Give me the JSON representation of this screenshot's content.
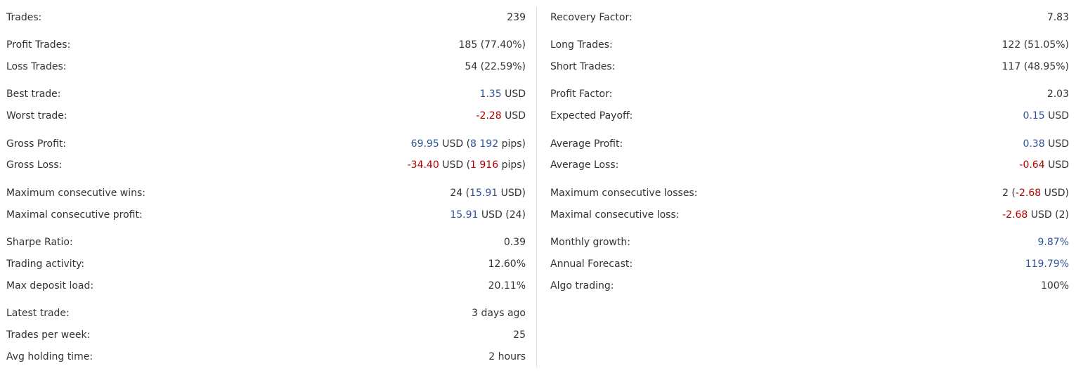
{
  "colors": {
    "text": "#333333",
    "positive": "#2f5597",
    "negative": "#b30000",
    "divider": "#e0e0e0"
  },
  "left": [
    {
      "label": "Trades:",
      "value": [
        {
          "t": "239",
          "c": "plain"
        }
      ]
    },
    {
      "label": "Profit Trades:",
      "value": [
        {
          "t": "185 (77.40%)",
          "c": "plain"
        }
      ]
    },
    {
      "label": "Loss Trades:",
      "value": [
        {
          "t": "54 (22.59%)",
          "c": "plain"
        }
      ]
    },
    {
      "label": "Best trade:",
      "value": [
        {
          "t": "1.35",
          "c": "pos"
        },
        {
          "t": " USD",
          "c": "plain"
        }
      ]
    },
    {
      "label": "Worst trade:",
      "value": [
        {
          "t": "-2.28",
          "c": "neg"
        },
        {
          "t": " USD",
          "c": "plain"
        }
      ]
    },
    {
      "label": "Gross Profit:",
      "value": [
        {
          "t": "69.95",
          "c": "pos"
        },
        {
          "t": " USD (",
          "c": "plain"
        },
        {
          "t": "8 192",
          "c": "pos"
        },
        {
          "t": " pips)",
          "c": "plain"
        }
      ]
    },
    {
      "label": "Gross Loss:",
      "value": [
        {
          "t": "-34.40",
          "c": "neg"
        },
        {
          "t": " USD (",
          "c": "plain"
        },
        {
          "t": "1 916",
          "c": "neg"
        },
        {
          "t": " pips)",
          "c": "plain"
        }
      ]
    },
    {
      "label": "Maximum consecutive wins:",
      "value": [
        {
          "t": "24 (",
          "c": "plain"
        },
        {
          "t": "15.91",
          "c": "pos"
        },
        {
          "t": " USD)",
          "c": "plain"
        }
      ]
    },
    {
      "label": "Maximal consecutive profit:",
      "value": [
        {
          "t": "15.91",
          "c": "pos"
        },
        {
          "t": " USD (24)",
          "c": "plain"
        }
      ]
    },
    {
      "label": "Sharpe Ratio:",
      "value": [
        {
          "t": "0.39",
          "c": "plain"
        }
      ]
    },
    {
      "label": "Trading activity:",
      "value": [
        {
          "t": "12.60%",
          "c": "plain"
        }
      ]
    },
    {
      "label": "Max deposit load:",
      "value": [
        {
          "t": "20.11%",
          "c": "plain"
        }
      ]
    },
    {
      "label": "Latest trade:",
      "value": [
        {
          "t": "3 days ago",
          "c": "plain"
        }
      ]
    },
    {
      "label": "Trades per week:",
      "value": [
        {
          "t": "25",
          "c": "plain"
        }
      ]
    },
    {
      "label": "Avg holding time:",
      "value": [
        {
          "t": "2 hours",
          "c": "plain"
        }
      ]
    }
  ],
  "right": [
    {
      "label": "Recovery Factor:",
      "value": [
        {
          "t": "7.83",
          "c": "plain"
        }
      ]
    },
    {
      "label": "Long Trades:",
      "value": [
        {
          "t": "122 (51.05%)",
          "c": "plain"
        }
      ]
    },
    {
      "label": "Short Trades:",
      "value": [
        {
          "t": "117 (48.95%)",
          "c": "plain"
        }
      ]
    },
    {
      "label": "Profit Factor:",
      "value": [
        {
          "t": "2.03",
          "c": "plain"
        }
      ]
    },
    {
      "label": "Expected Payoff:",
      "value": [
        {
          "t": "0.15",
          "c": "pos"
        },
        {
          "t": " USD",
          "c": "plain"
        }
      ]
    },
    {
      "label": "Average Profit:",
      "value": [
        {
          "t": "0.38",
          "c": "pos"
        },
        {
          "t": " USD",
          "c": "plain"
        }
      ]
    },
    {
      "label": "Average Loss:",
      "value": [
        {
          "t": "-0.64",
          "c": "neg"
        },
        {
          "t": " USD",
          "c": "plain"
        }
      ]
    },
    {
      "label": "Maximum consecutive losses:",
      "value": [
        {
          "t": "2 (",
          "c": "plain"
        },
        {
          "t": "-2.68",
          "c": "neg"
        },
        {
          "t": " USD)",
          "c": "plain"
        }
      ]
    },
    {
      "label": "Maximal consecutive loss:",
      "value": [
        {
          "t": "-2.68",
          "c": "neg"
        },
        {
          "t": " USD (2)",
          "c": "plain"
        }
      ]
    },
    {
      "label": "Monthly growth:",
      "value": [
        {
          "t": "9.87%",
          "c": "pos"
        }
      ]
    },
    {
      "label": "Annual Forecast:",
      "value": [
        {
          "t": "119.79%",
          "c": "pos"
        }
      ]
    },
    {
      "label": "Algo trading:",
      "value": [
        {
          "t": "100%",
          "c": "plain"
        }
      ]
    }
  ]
}
